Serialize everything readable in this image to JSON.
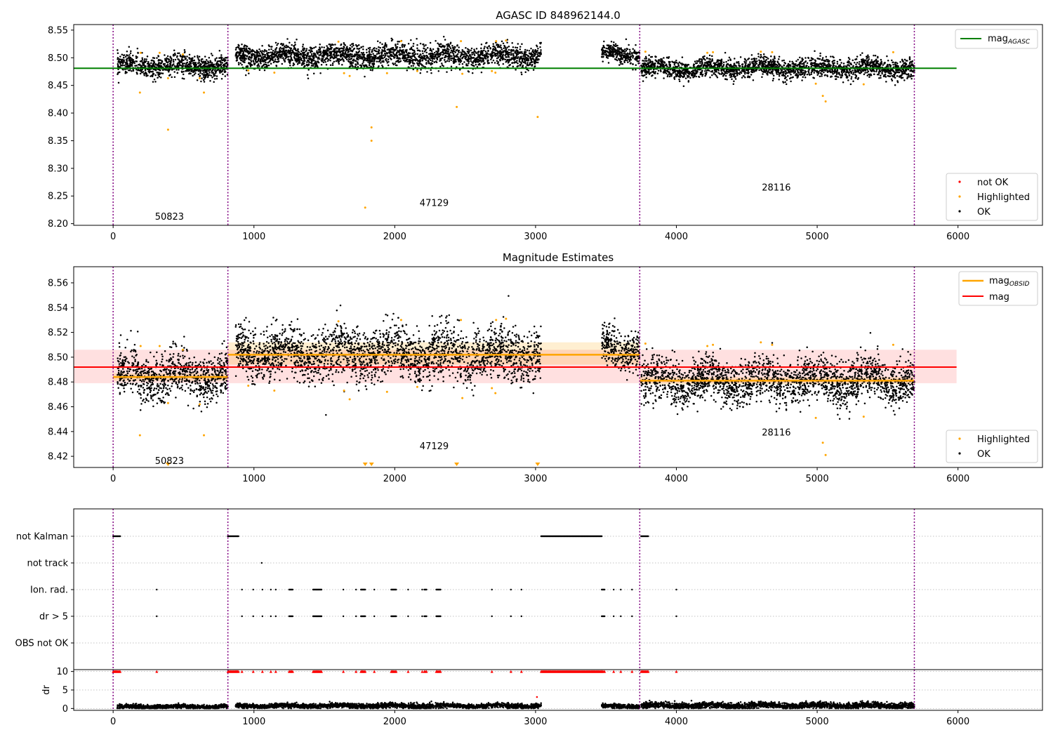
{
  "colors": {
    "ok": "#000000",
    "highlighted": "#ffa500",
    "not_ok": "#ff0000",
    "mag_agasc": "#008000",
    "mag_obsid": "#ffa500",
    "mag": "#ff0000",
    "obs_boundary": "#800080"
  },
  "chart_data": [
    {
      "type": "scatter",
      "title": "AGASC ID 848962144.0",
      "xlabel": "",
      "ylabel": "",
      "xlim": [
        -280,
        6600
      ],
      "ylim": [
        8.197,
        8.56
      ],
      "grid": false,
      "legend_placement": [
        "top-right",
        "bottom-right"
      ],
      "yticks": [
        "8.20",
        "8.25",
        "8.30",
        "8.35",
        "8.40",
        "8.45",
        "8.50",
        "8.55"
      ],
      "xticks": [
        "0",
        "1000",
        "2000",
        "3000",
        "4000",
        "5000",
        "6000"
      ],
      "obs_boundaries": [
        0,
        815,
        3740,
        5690
      ],
      "obsid_labels": [
        {
          "text": "50823",
          "x": 400,
          "y": 8.212
        },
        {
          "text": "47129",
          "x": 2280,
          "y": 8.237
        },
        {
          "text": "28116",
          "x": 4710,
          "y": 8.265
        }
      ],
      "mag_agasc": 8.481,
      "mag_agasc_range": [
        0,
        5990
      ],
      "ok_segments": [
        {
          "x": [
            30,
            815
          ],
          "mean": 8.485,
          "spread": 0.012
        },
        {
          "x": [
            870,
            3040
          ],
          "mean": 8.503,
          "spread": 0.013
        },
        {
          "x": [
            3470,
            3740
          ],
          "mean": 8.507,
          "spread": 0.01
        },
        {
          "x": [
            3750,
            5690
          ],
          "mean": 8.481,
          "spread": 0.011
        }
      ],
      "highlighted_points": [
        [
          190,
          8.437
        ],
        [
          195,
          8.509
        ],
        [
          330,
          8.509
        ],
        [
          390,
          8.37
        ],
        [
          390,
          8.463
        ],
        [
          495,
          8.506
        ],
        [
          645,
          8.437
        ],
        [
          615,
          8.463
        ],
        [
          960,
          8.477
        ],
        [
          1145,
          8.473
        ],
        [
          1600,
          8.529
        ],
        [
          1640,
          8.472
        ],
        [
          1680,
          8.467
        ],
        [
          1790,
          8.229
        ],
        [
          1835,
          8.374
        ],
        [
          1835,
          8.35
        ],
        [
          1945,
          8.472
        ],
        [
          2045,
          8.53
        ],
        [
          2160,
          8.476
        ],
        [
          2440,
          8.411
        ],
        [
          2470,
          8.53
        ],
        [
          2480,
          8.471
        ],
        [
          2690,
          8.476
        ],
        [
          2715,
          8.473
        ],
        [
          2720,
          8.53
        ],
        [
          2790,
          8.531
        ],
        [
          3015,
          8.393
        ],
        [
          3780,
          8.511
        ],
        [
          4220,
          8.509
        ],
        [
          4260,
          8.51
        ],
        [
          4600,
          8.511
        ],
        [
          4680,
          8.51
        ],
        [
          4990,
          8.453
        ],
        [
          5040,
          8.431
        ],
        [
          5060,
          8.421
        ],
        [
          5330,
          8.452
        ],
        [
          5540,
          8.51
        ]
      ],
      "legend": {
        "top": [
          "mag_AGASC"
        ],
        "bottom": [
          "not OK",
          "Highlighted",
          "OK"
        ]
      }
    },
    {
      "type": "scatter",
      "title": "Magnitude Estimates",
      "xlabel": "",
      "ylabel": "",
      "xlim": [
        -280,
        6600
      ],
      "ylim": [
        8.411,
        8.573
      ],
      "grid": false,
      "legend_placement": [
        "top-right",
        "bottom-right"
      ],
      "yticks": [
        "8.42",
        "8.44",
        "8.46",
        "8.48",
        "8.50",
        "8.52",
        "8.54",
        "8.56"
      ],
      "xticks": [
        "0",
        "1000",
        "2000",
        "3000",
        "4000",
        "5000",
        "6000"
      ],
      "obs_boundaries": [
        0,
        815,
        3740,
        5690
      ],
      "obsid_labels": [
        {
          "text": "50823",
          "x": 400,
          "y": 8.416
        },
        {
          "text": "47129",
          "x": 2280,
          "y": 8.428
        },
        {
          "text": "28116",
          "x": 4710,
          "y": 8.439
        }
      ],
      "mag": 8.492,
      "mag_band": [
        8.479,
        8.506
      ],
      "mag_range": [
        0,
        5990
      ],
      "mag_obsid": [
        {
          "x": [
            0,
            815
          ],
          "value": 8.484,
          "band": [
            8.481,
            8.487
          ]
        },
        {
          "x": [
            815,
            3740
          ],
          "value": 8.502,
          "band": [
            8.494,
            8.512
          ]
        },
        {
          "x": [
            3740,
            5690
          ],
          "value": 8.481,
          "band": [
            8.478,
            8.484
          ]
        }
      ],
      "ok_segments": [
        {
          "x": [
            30,
            815
          ],
          "mean": 8.485,
          "spread": 0.012
        },
        {
          "x": [
            870,
            3040
          ],
          "mean": 8.503,
          "spread": 0.013
        },
        {
          "x": [
            3470,
            3740
          ],
          "mean": 8.507,
          "spread": 0.01
        },
        {
          "x": [
            3750,
            5690
          ],
          "mean": 8.481,
          "spread": 0.011
        }
      ],
      "highlighted_points": [
        [
          190,
          8.437
        ],
        [
          195,
          8.509
        ],
        [
          330,
          8.509
        ],
        [
          390,
          8.463
        ],
        [
          495,
          8.506
        ],
        [
          645,
          8.437
        ],
        [
          615,
          8.462
        ],
        [
          960,
          8.477
        ],
        [
          1145,
          8.473
        ],
        [
          1600,
          8.529
        ],
        [
          1640,
          8.473
        ],
        [
          1680,
          8.466
        ],
        [
          1945,
          8.472
        ],
        [
          2045,
          8.53
        ],
        [
          2160,
          8.476
        ],
        [
          2470,
          8.53
        ],
        [
          2480,
          8.467
        ],
        [
          2690,
          8.475
        ],
        [
          2715,
          8.471
        ],
        [
          2720,
          8.53
        ],
        [
          2790,
          8.531
        ],
        [
          3780,
          8.511
        ],
        [
          4220,
          8.509
        ],
        [
          4260,
          8.51
        ],
        [
          4600,
          8.512
        ],
        [
          4680,
          8.51
        ],
        [
          4990,
          8.451
        ],
        [
          5040,
          8.431
        ],
        [
          5060,
          8.421
        ],
        [
          5330,
          8.452
        ],
        [
          5540,
          8.51
        ]
      ],
      "off_scale_markers_x": [
        390,
        1790,
        1835,
        2440,
        3015
      ],
      "legend": {
        "top": [
          "mag_OBSID",
          "mag"
        ],
        "bottom": [
          "Highlighted",
          "OK"
        ]
      }
    },
    {
      "type": "scatter",
      "title": "",
      "xlabel": "",
      "ylabel": "",
      "xlim": [
        -280,
        6600
      ],
      "grid": true,
      "flag_labels": [
        "not Kalman",
        "not track",
        "Ion. rad.",
        "dr > 5",
        "OBS not OK"
      ],
      "obs_boundaries": [
        0,
        815,
        3740,
        5690
      ],
      "flags": {
        "not Kalman": [
          [
            0,
            50
          ],
          [
            815,
            890
          ],
          [
            3040,
            3470
          ],
          [
            3750,
            3800
          ]
        ],
        "not track": [
          [
            1055,
            1060
          ]
        ],
        "Ion. rad.": [
          [
            310,
            312
          ],
          [
            915,
            918
          ],
          [
            995,
            998
          ],
          [
            1060,
            1063
          ],
          [
            1120,
            1123
          ],
          [
            1155,
            1158
          ],
          [
            1250,
            1275
          ],
          [
            1420,
            1480
          ],
          [
            1635,
            1638
          ],
          [
            1725,
            1728
          ],
          [
            1760,
            1790
          ],
          [
            1855,
            1858
          ],
          [
            1975,
            2010
          ],
          [
            2095,
            2098
          ],
          [
            2195,
            2200
          ],
          [
            2210,
            2225
          ],
          [
            2295,
            2325
          ],
          [
            2690,
            2693
          ],
          [
            2825,
            2828
          ],
          [
            2900,
            2903
          ],
          [
            3470,
            3490
          ],
          [
            3555,
            3560
          ],
          [
            3605,
            3608
          ],
          [
            3685,
            3688
          ],
          [
            4000,
            4003
          ]
        ],
        "dr > 5": [
          [
            310,
            312
          ],
          [
            915,
            918
          ],
          [
            995,
            998
          ],
          [
            1060,
            1063
          ],
          [
            1120,
            1123
          ],
          [
            1155,
            1158
          ],
          [
            1250,
            1275
          ],
          [
            1420,
            1480
          ],
          [
            1635,
            1638
          ],
          [
            1725,
            1728
          ],
          [
            1760,
            1790
          ],
          [
            1855,
            1858
          ],
          [
            1975,
            2010
          ],
          [
            2095,
            2098
          ],
          [
            2195,
            2200
          ],
          [
            2210,
            2225
          ],
          [
            2295,
            2325
          ],
          [
            2690,
            2693
          ],
          [
            2825,
            2828
          ],
          [
            2900,
            2903
          ],
          [
            3470,
            3490
          ],
          [
            3555,
            3560
          ],
          [
            3605,
            3608
          ],
          [
            3685,
            3688
          ],
          [
            4000,
            4003
          ]
        ],
        "OBS not OK": []
      },
      "dr_panel": {
        "ylabel": "dr",
        "ylim": [
          -0.5,
          10.5
        ],
        "yticks": [
          "0",
          "5",
          "10"
        ],
        "xticks": [
          "0",
          "1000",
          "2000",
          "3000",
          "4000",
          "5000",
          "6000"
        ],
        "ok_segments": [
          {
            "x": [
              30,
              815
            ],
            "mean": 0.5,
            "spread": 0.35
          },
          {
            "x": [
              870,
              3040
            ],
            "mean": 0.7,
            "spread": 0.4
          },
          {
            "x": [
              3470,
              3740
            ],
            "mean": 0.6,
            "spread": 0.35
          },
          {
            "x": [
              3750,
              5690
            ],
            "mean": 0.8,
            "spread": 0.5
          }
        ],
        "capped_value": 10,
        "capped_x_ranges": [
          [
            0,
            50
          ],
          [
            815,
            890
          ],
          [
            3040,
            3470
          ],
          [
            3750,
            3800
          ],
          [
            310,
            312
          ],
          [
            915,
            918
          ],
          [
            995,
            998
          ],
          [
            1060,
            1063
          ],
          [
            1120,
            1123
          ],
          [
            1155,
            1158
          ],
          [
            1250,
            1275
          ],
          [
            1420,
            1480
          ],
          [
            1635,
            1638
          ],
          [
            1725,
            1728
          ],
          [
            1760,
            1790
          ],
          [
            1855,
            1858
          ],
          [
            1975,
            2010
          ],
          [
            2095,
            2098
          ],
          [
            2195,
            2200
          ],
          [
            2210,
            2225
          ],
          [
            2295,
            2325
          ],
          [
            2690,
            2693
          ],
          [
            2825,
            2828
          ],
          [
            2900,
            2903
          ],
          [
            3470,
            3490
          ],
          [
            3555,
            3560
          ],
          [
            3605,
            3608
          ],
          [
            3685,
            3688
          ],
          [
            4000,
            4003
          ]
        ],
        "not_ok_points": [
          [
            3010,
            3.1
          ]
        ]
      }
    }
  ],
  "legend_text": {
    "mag_agasc_base": "mag",
    "mag_agasc_sub": "AGASC",
    "mag_obsid_base": "mag",
    "mag_obsid_sub": "OBSID",
    "mag": "mag",
    "not_ok": "not OK",
    "highlighted": "Highlighted",
    "ok": "OK"
  }
}
